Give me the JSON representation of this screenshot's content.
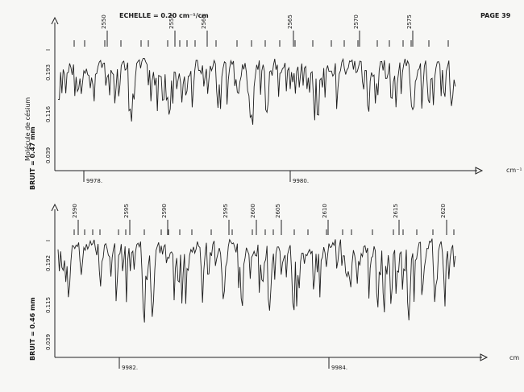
{
  "page": {
    "scale_label": "ECHELLE = 0.20 cm⁻¹/cm",
    "page_number": "PAGE 39",
    "molecule_label": "Molécule de césium",
    "noise_top": "BRUIT = 0.47 mm",
    "noise_bottom": "BRUIT = 0.46 mm",
    "xunit_top": "cm⁻¹",
    "xunit_bottom": "cm"
  },
  "chart_data": [
    {
      "type": "line",
      "title": "",
      "xlabel": "cm⁻¹",
      "ylabel": "I",
      "y_tick_labels": [
        "0.193",
        "0.116",
        "0.039"
      ],
      "x_tick_labels": [
        "9978.",
        "9980."
      ],
      "line_labels": [
        "2550",
        "2555",
        "2560",
        "2565",
        "2570",
        "2575"
      ],
      "grid": false,
      "legend": "none"
    },
    {
      "type": "line",
      "title": "",
      "xlabel": "cm",
      "ylabel": "I",
      "y_tick_labels": [
        "0.192",
        "0.115",
        "0.039"
      ],
      "x_tick_labels": [
        "9982.",
        "9984."
      ],
      "line_labels": [
        "2590",
        "2595",
        "2590",
        "2595",
        "2600",
        "2605",
        "2610",
        "2615",
        "2620"
      ],
      "grid": false,
      "legend": "none"
    }
  ]
}
